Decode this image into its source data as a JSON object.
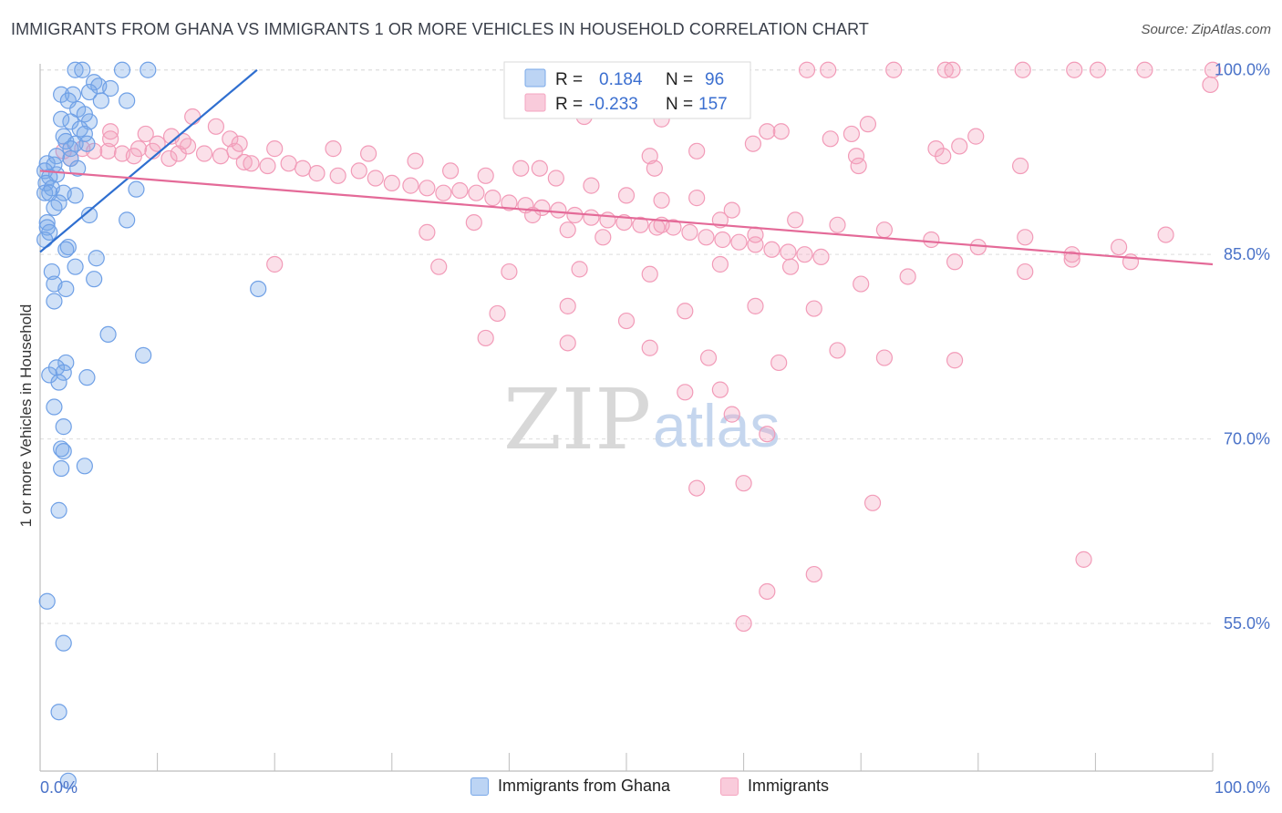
{
  "header": {
    "title": "IMMIGRANTS FROM GHANA VS IMMIGRANTS 1 OR MORE VEHICLES IN HOUSEHOLD CORRELATION CHART",
    "source": "Source: ZipAtlas.com"
  },
  "watermark": {
    "zip": "ZIP",
    "atlas": "atlas"
  },
  "legend": {
    "rows": [
      {
        "r_label": "R =",
        "r_value": "0.184",
        "n_label": "N =",
        "n_value": "96",
        "color": "#7aa9e8"
      },
      {
        "r_label": "R =",
        "r_value": "-0.233",
        "n_label": "N =",
        "n_value": "157",
        "color": "#f4a6c0"
      }
    ]
  },
  "bottom_legend": {
    "items": [
      {
        "label": "Immigrants from Ghana",
        "color": "#7aa9e8"
      },
      {
        "label": "Immigrants",
        "color": "#f4a6c0"
      }
    ]
  },
  "chart_data": {
    "type": "scatter",
    "title": "IMMIGRANTS FROM GHANA VS IMMIGRANTS 1 OR MORE VEHICLES IN HOUSEHOLD CORRELATION CHART",
    "xlabel": "",
    "ylabel": "1 or more Vehicles in Household",
    "xlim": [
      0,
      100
    ],
    "ylim": [
      43,
      100.5
    ],
    "x_tick_labels": [
      "0.0%",
      "100.0%"
    ],
    "y_ticks": [
      55,
      70,
      85,
      100
    ],
    "y_tick_labels": [
      "55.0%",
      "70.0%",
      "85.0%",
      "100.0%"
    ],
    "grid": true,
    "legend_position": "top-center",
    "series": [
      {
        "name": "Immigrants from Ghana",
        "color": "#6fa0e6",
        "line_color": "#2f6fd0",
        "trend": {
          "x": [
            0,
            18.5
          ],
          "y": [
            85.2,
            100
          ]
        },
        "points": [
          [
            3.0,
            100
          ],
          [
            3.6,
            100
          ],
          [
            7.0,
            100
          ],
          [
            9.2,
            100
          ],
          [
            4.6,
            99.0
          ],
          [
            5.0,
            98.7
          ],
          [
            6.0,
            98.5
          ],
          [
            1.8,
            98.0
          ],
          [
            2.8,
            98.0
          ],
          [
            4.2,
            98.2
          ],
          [
            5.2,
            97.5
          ],
          [
            7.4,
            97.5
          ],
          [
            2.4,
            97.5
          ],
          [
            3.2,
            96.8
          ],
          [
            3.8,
            96.4
          ],
          [
            1.8,
            96.0
          ],
          [
            2.6,
            95.8
          ],
          [
            4.2,
            95.8
          ],
          [
            3.4,
            95.2
          ],
          [
            3.8,
            94.8
          ],
          [
            2.0,
            94.6
          ],
          [
            2.2,
            94.2
          ],
          [
            3.0,
            94.0
          ],
          [
            4.0,
            94.0
          ],
          [
            2.6,
            93.6
          ],
          [
            1.4,
            93.0
          ],
          [
            2.6,
            92.8
          ],
          [
            0.6,
            92.4
          ],
          [
            1.2,
            92.3
          ],
          [
            3.2,
            92.0
          ],
          [
            0.4,
            91.8
          ],
          [
            1.4,
            91.5
          ],
          [
            0.8,
            91.3
          ],
          [
            0.5,
            90.8
          ],
          [
            1.0,
            90.4
          ],
          [
            8.2,
            90.3
          ],
          [
            0.4,
            90.0
          ],
          [
            0.8,
            90.0
          ],
          [
            2.0,
            90.0
          ],
          [
            3.0,
            89.8
          ],
          [
            1.6,
            89.2
          ],
          [
            1.2,
            88.8
          ],
          [
            4.2,
            88.2
          ],
          [
            0.6,
            87.6
          ],
          [
            7.4,
            87.8
          ],
          [
            0.6,
            87.2
          ],
          [
            0.8,
            86.8
          ],
          [
            0.4,
            86.2
          ],
          [
            2.4,
            85.6
          ],
          [
            2.2,
            85.4
          ],
          [
            4.8,
            84.7
          ],
          [
            3.0,
            84.0
          ],
          [
            1.0,
            83.6
          ],
          [
            4.6,
            83.0
          ],
          [
            18.6,
            82.2
          ],
          [
            1.2,
            82.6
          ],
          [
            2.2,
            82.2
          ],
          [
            1.2,
            81.2
          ],
          [
            5.8,
            78.5
          ],
          [
            8.8,
            76.8
          ],
          [
            2.2,
            76.2
          ],
          [
            1.4,
            75.8
          ],
          [
            2.0,
            75.4
          ],
          [
            0.8,
            75.2
          ],
          [
            4.0,
            75.0
          ],
          [
            1.6,
            74.6
          ],
          [
            1.2,
            72.6
          ],
          [
            2.0,
            71.0
          ],
          [
            1.8,
            69.2
          ],
          [
            2.0,
            69.0
          ],
          [
            1.8,
            67.6
          ],
          [
            3.8,
            67.8
          ],
          [
            1.6,
            64.2
          ],
          [
            0.6,
            56.8
          ],
          [
            2.0,
            53.4
          ],
          [
            1.6,
            47.8
          ],
          [
            2.4,
            42.2
          ]
        ]
      },
      {
        "name": "Immigrants",
        "color": "#f29bb8",
        "line_color": "#e46a98",
        "trend": {
          "x": [
            0,
            100
          ],
          "y": [
            91.8,
            84.2
          ]
        },
        "points": [
          [
            65.4,
            100
          ],
          [
            67.2,
            100
          ],
          [
            72.8,
            100
          ],
          [
            77.2,
            100
          ],
          [
            77.8,
            100
          ],
          [
            83.8,
            100
          ],
          [
            88.2,
            100
          ],
          [
            90.2,
            100
          ],
          [
            94.2,
            100
          ],
          [
            100,
            100
          ],
          [
            99.8,
            98.8
          ],
          [
            70.6,
            95.6
          ],
          [
            53.0,
            96.0
          ],
          [
            46.4,
            96.2
          ],
          [
            63.2,
            95.0
          ],
          [
            67.4,
            94.4
          ],
          [
            69.2,
            94.8
          ],
          [
            79.8,
            94.6
          ],
          [
            60.8,
            94.0
          ],
          [
            62.0,
            95.0
          ],
          [
            78.4,
            93.8
          ],
          [
            76.4,
            93.6
          ],
          [
            56.0,
            93.4
          ],
          [
            69.6,
            93.0
          ],
          [
            77.0,
            93.0
          ],
          [
            52.0,
            93.0
          ],
          [
            83.6,
            92.2
          ],
          [
            69.8,
            92.2
          ],
          [
            52.4,
            92.0
          ],
          [
            42.6,
            92.0
          ],
          [
            17.4,
            92.5
          ],
          [
            2.0,
            93.4
          ],
          [
            2.6,
            92.8
          ],
          [
            3.6,
            93.6
          ],
          [
            4.6,
            93.4
          ],
          [
            5.8,
            93.4
          ],
          [
            7.0,
            93.2
          ],
          [
            8.4,
            93.6
          ],
          [
            9.6,
            93.4
          ],
          [
            11.0,
            92.8
          ],
          [
            11.8,
            93.2
          ],
          [
            12.6,
            93.8
          ],
          [
            14.0,
            93.2
          ],
          [
            15.4,
            93.0
          ],
          [
            16.6,
            93.4
          ],
          [
            18.0,
            92.4
          ],
          [
            19.4,
            92.2
          ],
          [
            21.2,
            92.4
          ],
          [
            22.4,
            92.0
          ],
          [
            23.6,
            91.6
          ],
          [
            25.4,
            91.4
          ],
          [
            27.2,
            91.8
          ],
          [
            28.6,
            91.2
          ],
          [
            30.0,
            90.8
          ],
          [
            31.6,
            90.6
          ],
          [
            33.0,
            90.4
          ],
          [
            34.4,
            90.0
          ],
          [
            35.8,
            90.2
          ],
          [
            37.2,
            90.0
          ],
          [
            38.6,
            89.6
          ],
          [
            40.0,
            89.2
          ],
          [
            41.4,
            89.0
          ],
          [
            42.8,
            88.8
          ],
          [
            44.2,
            88.6
          ],
          [
            45.6,
            88.2
          ],
          [
            47.0,
            88.0
          ],
          [
            48.4,
            87.8
          ],
          [
            49.8,
            87.6
          ],
          [
            51.2,
            87.4
          ],
          [
            52.6,
            87.2
          ],
          [
            54.0,
            87.2
          ],
          [
            55.4,
            86.8
          ],
          [
            56.8,
            86.4
          ],
          [
            58.2,
            86.2
          ],
          [
            59.6,
            86.0
          ],
          [
            61.0,
            85.8
          ],
          [
            62.4,
            85.4
          ],
          [
            63.8,
            85.2
          ],
          [
            65.2,
            85.0
          ],
          [
            66.6,
            84.8
          ],
          [
            6.0,
            95.0
          ],
          [
            9.0,
            94.8
          ],
          [
            12.2,
            94.2
          ],
          [
            16.2,
            94.4
          ],
          [
            17.0,
            94.0
          ],
          [
            20.0,
            93.6
          ],
          [
            13.0,
            96.2
          ],
          [
            15.0,
            95.4
          ],
          [
            6.0,
            94.4
          ],
          [
            8.0,
            93.0
          ],
          [
            10.0,
            94.0
          ],
          [
            11.2,
            94.6
          ],
          [
            25.0,
            93.6
          ],
          [
            28.0,
            93.2
          ],
          [
            32.0,
            92.6
          ],
          [
            35.0,
            91.8
          ],
          [
            38.0,
            91.4
          ],
          [
            41.0,
            92.0
          ],
          [
            44.0,
            91.2
          ],
          [
            47.0,
            90.6
          ],
          [
            50.0,
            89.8
          ],
          [
            53.0,
            89.4
          ],
          [
            56.0,
            89.6
          ],
          [
            59.0,
            88.6
          ],
          [
            20.0,
            84.2
          ],
          [
            33.0,
            86.8
          ],
          [
            37.0,
            87.6
          ],
          [
            42.0,
            88.2
          ],
          [
            45.0,
            87.0
          ],
          [
            48.0,
            86.4
          ],
          [
            53.0,
            87.4
          ],
          [
            58.0,
            87.8
          ],
          [
            61.0,
            86.6
          ],
          [
            64.4,
            87.8
          ],
          [
            68.0,
            87.4
          ],
          [
            72.0,
            87.0
          ],
          [
            76.0,
            86.2
          ],
          [
            80.0,
            85.6
          ],
          [
            84.0,
            86.4
          ],
          [
            88.0,
            85.0
          ],
          [
            92.0,
            85.6
          ],
          [
            96.0,
            86.6
          ],
          [
            34.0,
            84.0
          ],
          [
            40.0,
            83.6
          ],
          [
            46.0,
            83.8
          ],
          [
            52.0,
            83.4
          ],
          [
            58.0,
            84.2
          ],
          [
            64.0,
            84.0
          ],
          [
            70.0,
            82.6
          ],
          [
            74.0,
            83.2
          ],
          [
            78.0,
            84.4
          ],
          [
            84.0,
            83.6
          ],
          [
            88.0,
            84.6
          ],
          [
            93.0,
            84.4
          ],
          [
            39.0,
            80.2
          ],
          [
            45.0,
            80.8
          ],
          [
            50.0,
            79.6
          ],
          [
            55.0,
            80.4
          ],
          [
            61.0,
            80.8
          ],
          [
            66.0,
            80.6
          ],
          [
            38.0,
            78.2
          ],
          [
            45.0,
            77.8
          ],
          [
            52.0,
            77.4
          ],
          [
            57.0,
            76.6
          ],
          [
            63.0,
            76.2
          ],
          [
            68.0,
            77.2
          ],
          [
            72.0,
            76.6
          ],
          [
            78.0,
            76.4
          ],
          [
            55.0,
            73.8
          ],
          [
            58.0,
            74.0
          ],
          [
            59.0,
            72.0
          ],
          [
            62.0,
            70.4
          ],
          [
            56.0,
            66.0
          ],
          [
            60.0,
            66.4
          ],
          [
            71.0,
            64.8
          ],
          [
            89.0,
            60.2
          ],
          [
            66.0,
            59.0
          ],
          [
            62.0,
            57.6
          ],
          [
            60.0,
            55.0
          ]
        ]
      }
    ]
  }
}
